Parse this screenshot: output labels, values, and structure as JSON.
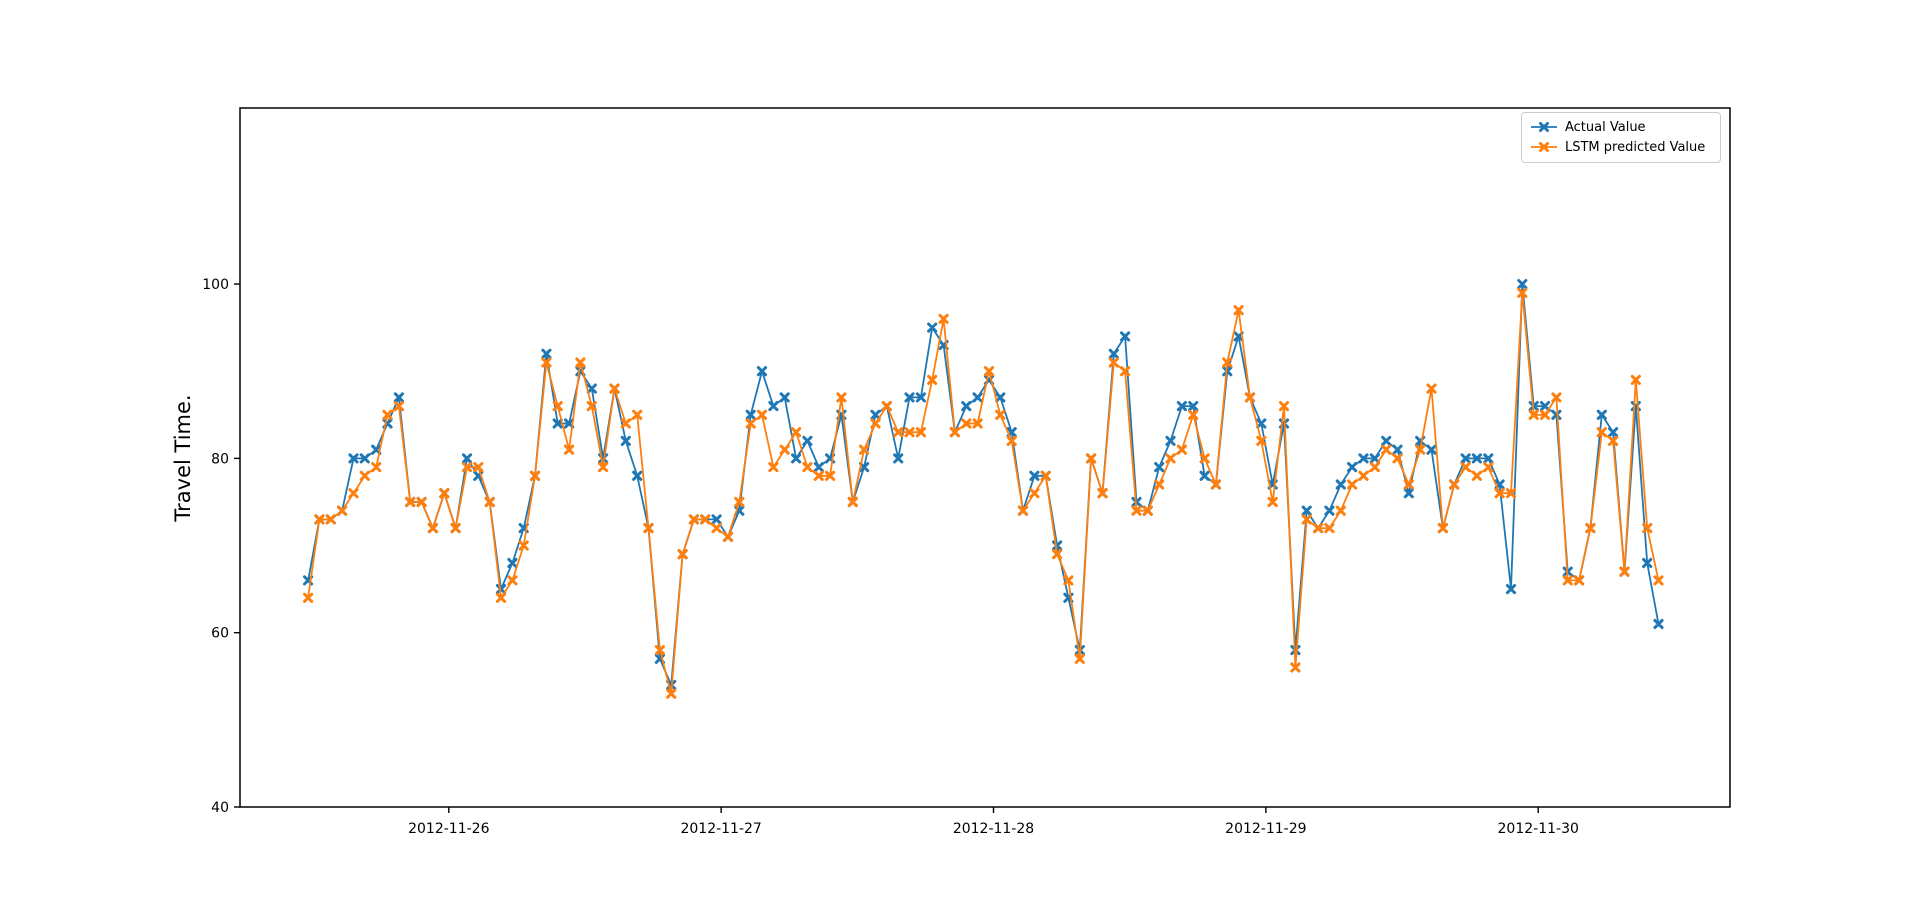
{
  "figure": {
    "background": "#ffffff"
  },
  "chart_data": {
    "type": "line",
    "title": "",
    "xlabel": "",
    "ylabel": "Travel Time.",
    "grid": false,
    "legend_position": "upper right",
    "x_unit": "hours from first observation (~2012-11-25 12:00), 1 point per hour",
    "x_start": 0,
    "x_step": 1,
    "xlim": [
      -6.0,
      125.3
    ],
    "ylim": [
      40,
      120.2
    ],
    "yticks": [
      {
        "v": 40,
        "label": "40"
      },
      {
        "v": 60,
        "label": "60"
      },
      {
        "v": 80,
        "label": "80"
      },
      {
        "v": 100,
        "label": "100"
      }
    ],
    "xticks": [
      {
        "t": 12.4,
        "label": "2012-11-26"
      },
      {
        "t": 36.4,
        "label": "2012-11-27"
      },
      {
        "t": 60.4,
        "label": "2012-11-28"
      },
      {
        "t": 84.4,
        "label": "2012-11-29"
      },
      {
        "t": 108.4,
        "label": "2012-11-30"
      }
    ],
    "series": [
      {
        "name": "Actual Value",
        "color": "#1f77b4",
        "marker": "X",
        "values": [
          66,
          73,
          73,
          74,
          80,
          80,
          81,
          84,
          87,
          75,
          75,
          72,
          76,
          72,
          80,
          78,
          75,
          65,
          68,
          72,
          78,
          92,
          84,
          84,
          90,
          88,
          80,
          88,
          82,
          78,
          72,
          57,
          54,
          69,
          73,
          73,
          73,
          71,
          74,
          85,
          90,
          86,
          87,
          80,
          82,
          79,
          80,
          85,
          75,
          79,
          85,
          86,
          80,
          87,
          87,
          95,
          93,
          83,
          86,
          87,
          89,
          87,
          83,
          74,
          78,
          78,
          70,
          64,
          58,
          80,
          76,
          92,
          94,
          75,
          74,
          79,
          82,
          86,
          86,
          78,
          77,
          90,
          94,
          87,
          84,
          77,
          84,
          58,
          74,
          72,
          74,
          77,
          79,
          80,
          80,
          82,
          81,
          76,
          82,
          81,
          72,
          77,
          80,
          80,
          80,
          77,
          65,
          100,
          86,
          86,
          85,
          67,
          66,
          72,
          85,
          83,
          67,
          86,
          68,
          61
        ]
      },
      {
        "name": "LSTM predicted Value",
        "color": "#ff7f0e",
        "marker": "X",
        "values": [
          64,
          73,
          73,
          74,
          76,
          78,
          79,
          85,
          86,
          75,
          75,
          72,
          76,
          72,
          79,
          79,
          75,
          64,
          66,
          70,
          78,
          91,
          86,
          81,
          91,
          86,
          79,
          88,
          84,
          85,
          72,
          58,
          53,
          69,
          73,
          73,
          72,
          71,
          75,
          84,
          85,
          79,
          81,
          83,
          79,
          78,
          78,
          87,
          75,
          81,
          84,
          86,
          83,
          83,
          83,
          89,
          96,
          83,
          84,
          84,
          90,
          85,
          82,
          74,
          76,
          78,
          69,
          66,
          57,
          80,
          76,
          91,
          90,
          74,
          74,
          77,
          80,
          81,
          85,
          80,
          77,
          91,
          97,
          87,
          82,
          75,
          86,
          56,
          73,
          72,
          72,
          74,
          77,
          78,
          79,
          81,
          80,
          77,
          81,
          88,
          72,
          77,
          79,
          78,
          79,
          76,
          76,
          99,
          85,
          85,
          87,
          66,
          66,
          72,
          83,
          82,
          67,
          89,
          72,
          66
        ]
      }
    ]
  }
}
